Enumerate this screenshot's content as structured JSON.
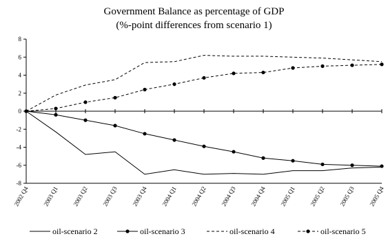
{
  "title_lines": [
    "Government Balance as percentage of GDP",
    "(%-point differences from scenario 1)"
  ],
  "chart_data": {
    "type": "line",
    "title": "Government Balance as percentage of GDP",
    "subtitle": "(%-point differences from scenario 1)",
    "xlabel": "",
    "ylabel": "",
    "categories": [
      "2002 Q4",
      "2003 Q1",
      "2003 Q2",
      "2003 Q3",
      "2003 Q4",
      "2004 Q1",
      "2004 Q2",
      "2004 Q3",
      "2004 Q4",
      "2005 Q1",
      "2005 Q2",
      "2005 Q3",
      "2005 Q4"
    ],
    "ylim": [
      -8,
      8
    ],
    "yticks": [
      8,
      6,
      4,
      2,
      0,
      -2,
      -4,
      -6,
      -8
    ],
    "grid": false,
    "legend": "bottom",
    "series": [
      {
        "name": "oil-scenario 2",
        "style": "solid",
        "color": "#000000",
        "markers": false,
        "values": [
          0,
          -2.3,
          -4.8,
          -4.5,
          -7.0,
          -6.5,
          -7.0,
          -6.9,
          -7.0,
          -6.6,
          -6.6,
          -6.3,
          -6.2
        ]
      },
      {
        "name": "oil-scenario 3",
        "style": "solid",
        "color": "#000000",
        "markers": true,
        "values": [
          0,
          -0.4,
          -1.0,
          -1.6,
          -2.5,
          -3.2,
          -3.9,
          -4.5,
          -5.2,
          -5.5,
          -5.9,
          -6.0,
          -6.1
        ]
      },
      {
        "name": "oil-scenario 4",
        "style": "dashed",
        "color": "#000000",
        "markers": false,
        "values": [
          0,
          1.8,
          2.9,
          3.5,
          5.4,
          5.5,
          6.2,
          6.1,
          6.1,
          6.0,
          5.9,
          5.7,
          5.5
        ]
      },
      {
        "name": "oil-scenario 5",
        "style": "dashed",
        "color": "#000000",
        "markers": true,
        "values": [
          0,
          0.3,
          1.0,
          1.5,
          2.4,
          3.0,
          3.7,
          4.2,
          4.3,
          4.8,
          5.0,
          5.1,
          5.2
        ]
      }
    ]
  }
}
